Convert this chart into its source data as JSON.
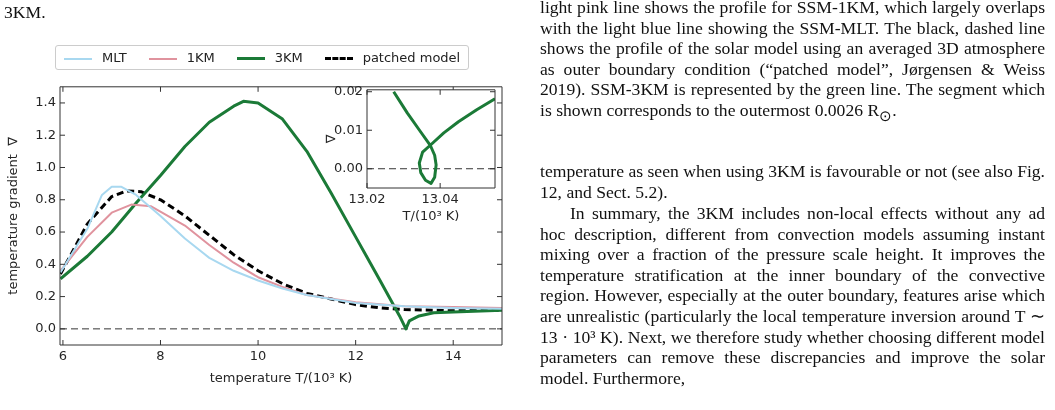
{
  "chart_data": [
    {
      "type": "line",
      "xlabel": "temperature T/(10³ K)",
      "ylabel": "temperature gradient  ∇",
      "legend": "top",
      "line_style": "solid",
      "marker": "none",
      "grid": false,
      "xlim": [
        5.94,
        15
      ],
      "ylim": [
        -0.1,
        1.5
      ],
      "xticks": [
        6,
        8,
        10,
        12,
        14
      ],
      "yticks": [
        {
          "value": 0,
          "label": "0.0"
        },
        {
          "value": 0.2,
          "label": "0.2"
        },
        {
          "value": 0.4,
          "label": "0.4"
        },
        {
          "value": 0.6,
          "label": "0.6"
        },
        {
          "value": 0.8,
          "label": "0.8"
        },
        {
          "value": 1.0,
          "label": "1.0"
        },
        {
          "value": 1.2,
          "label": "1.2"
        },
        {
          "value": 1.4,
          "label": "1.4"
        }
      ],
      "ref_lines": [
        {
          "axis": "y",
          "value": 0,
          "color": "#000000",
          "line_style": "dashed"
        }
      ],
      "series": [
        {
          "name": "MLT",
          "color": "#a8d8f0",
          "x": [
            5.95,
            6.5,
            6.8,
            7.0,
            7.2,
            7.5,
            8,
            8.5,
            9,
            9.5,
            10,
            10.5,
            11,
            12,
            13,
            14,
            15
          ],
          "values": [
            0.35,
            0.62,
            0.83,
            0.88,
            0.88,
            0.83,
            0.7,
            0.56,
            0.44,
            0.36,
            0.3,
            0.25,
            0.21,
            0.16,
            0.14,
            0.13,
            0.125
          ]
        },
        {
          "name": "1KM",
          "color": "#e0939e",
          "x": [
            5.95,
            6.5,
            7,
            7.4,
            7.8,
            8.5,
            9,
            9.5,
            10,
            10.5,
            11,
            12,
            13,
            14,
            15
          ],
          "values": [
            0.36,
            0.57,
            0.72,
            0.77,
            0.76,
            0.64,
            0.52,
            0.41,
            0.32,
            0.26,
            0.21,
            0.165,
            0.14,
            0.135,
            0.13
          ]
        },
        {
          "name": "3KM",
          "color": "#1b7a37",
          "x": [
            5.95,
            6.5,
            7,
            7.5,
            8,
            8.5,
            9,
            9.5,
            9.7,
            10,
            10.5,
            11,
            11.5,
            12,
            12.5,
            12.9,
            13.03,
            13.1,
            13.3,
            13.6,
            14,
            15
          ],
          "values": [
            0.31,
            0.45,
            0.6,
            0.78,
            0.95,
            1.13,
            1.28,
            1.38,
            1.41,
            1.4,
            1.3,
            1.1,
            0.84,
            0.57,
            0.3,
            0.08,
            0.0,
            0.05,
            0.08,
            0.1,
            0.105,
            0.115
          ]
        },
        {
          "name": "patched model",
          "color": "#000000",
          "line_style": "dashed",
          "x": [
            5.95,
            6.5,
            7,
            7.3,
            7.6,
            8,
            8.5,
            9,
            9.5,
            10,
            10.5,
            11,
            12,
            12.5,
            13,
            14,
            15
          ],
          "values": [
            0.34,
            0.65,
            0.82,
            0.855,
            0.85,
            0.8,
            0.7,
            0.58,
            0.46,
            0.36,
            0.28,
            0.22,
            0.15,
            0.13,
            0.12,
            0.112,
            0.115
          ]
        }
      ],
      "annotations": [
        "3KM.",
        "light pink line shows the profile for SSM-1KM, which largely overlaps with the light blue line showing the SSM-MLT. The black, dashed line shows the profile of the solar model using an averaged 3D atmosphere as outer boundary condition (“patched model”,  Jørgensen & Weiss 2019). SSM-3KM is represented by the green line. The segment which is shown corresponds to the outermost 0.0026 R$_{⊙}$.",
        "temperature as seen when using 3KM is favourable or not (see also Fig. 12, and Sect. 5.2).",
        "In summary, the 3KM includes non-local effects without any ad hoc description, different from convection models assuming instant mixing over a fraction of the pressure scale height. It improves the temperature stratification at the inner boundary of the convective region. However, especially at the outer boundary, features arise which are unrealistic (particularly the local temperature inversion around T ∼ 13 · 10³ K). Next, we therefore study whether choosing different model parameters can remove these discrepancies and improve the solar model. Furthermore,"
      ]
    },
    {
      "type": "line",
      "xlabel": "T/(10³ K)",
      "ylabel": "∇",
      "marker": "none",
      "line_style": "solid",
      "grid": false,
      "xlim": [
        13.02,
        13.055
      ],
      "ylim": [
        -0.005,
        0.0205
      ],
      "xticks": [
        13.02,
        13.04
      ],
      "yticks": [
        {
          "value": 0,
          "label": "0.00"
        },
        {
          "value": 0.01,
          "label": "0.01"
        },
        {
          "value": 0.02,
          "label": "0.02"
        }
      ],
      "ref_lines": [
        {
          "axis": "y",
          "value": 0,
          "color": "#000000",
          "line_style": "dashed"
        }
      ],
      "series": [
        {
          "color": "#1b7a37",
          "x": [
            13.0273,
            13.031,
            13.0345,
            13.0373,
            13.0385,
            13.0389,
            13.0385,
            13.0375,
            13.036,
            13.0347,
            13.0343,
            13.0352,
            13.0373,
            13.041,
            13.045,
            13.05,
            13.055
          ],
          "values": [
            0.02,
            0.0145,
            0.0098,
            0.0061,
            0.0035,
            0.001,
            -0.0022,
            -0.0038,
            -0.003,
            -0.001,
            0.0015,
            0.0043,
            0.0061,
            0.0093,
            0.0122,
            0.0153,
            0.0182
          ]
        }
      ]
    }
  ]
}
